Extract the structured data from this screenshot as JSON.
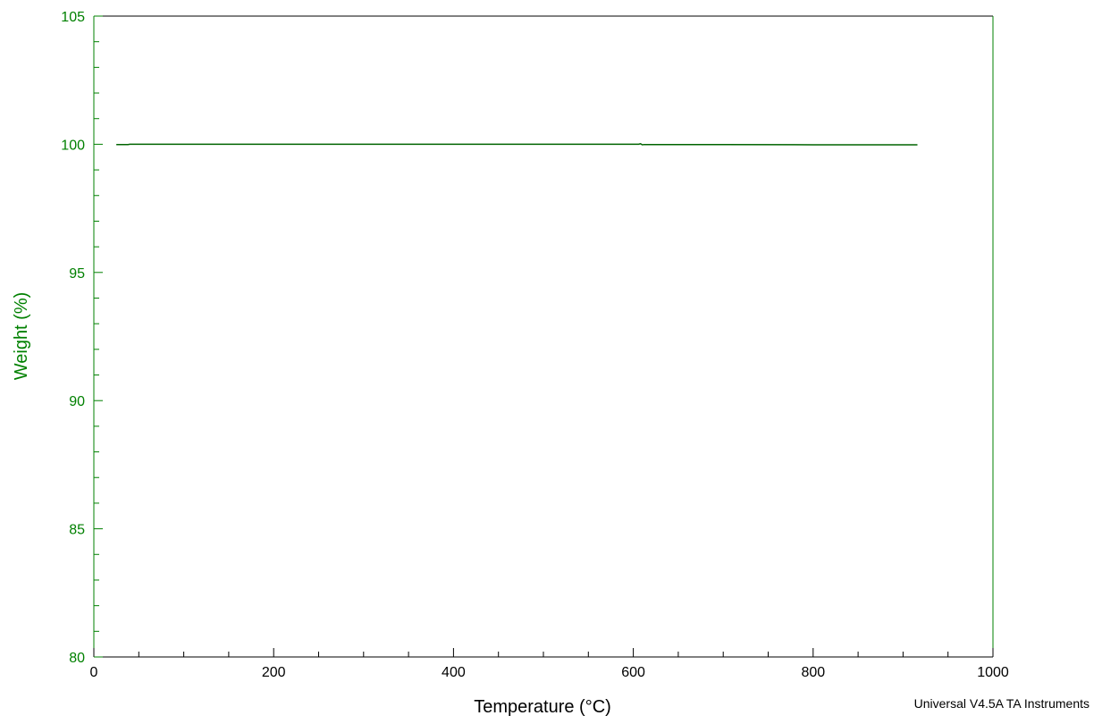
{
  "chart_data": {
    "type": "line",
    "xlabel": "Temperature (°C)",
    "ylabel": "Weight (%)",
    "xlim": [
      0,
      1000
    ],
    "ylim": [
      80,
      105
    ],
    "x_ticks": [
      0,
      200,
      400,
      600,
      800,
      1000
    ],
    "x_tick_labels": [
      "0",
      "200",
      "400",
      "600",
      "800",
      "1000"
    ],
    "x_minor_step": 50,
    "y_ticks": [
      80,
      85,
      90,
      95,
      100,
      105
    ],
    "y_tick_labels": [
      "80",
      "85",
      "90",
      "95",
      "100",
      "105"
    ],
    "y_minor_step": 1,
    "grid": false,
    "series": [
      {
        "x": [
          25,
          38,
          40,
          100,
          200,
          300,
          400,
          500,
          600,
          606,
          608,
          610,
          612,
          700,
          800,
          916
        ],
        "y": [
          99.99,
          99.99,
          100.0,
          100.0,
          100.0,
          100.0,
          100.0,
          100.0,
          100.0,
          100.0,
          100.02,
          99.98,
          99.99,
          99.99,
          99.98,
          99.98
        ]
      }
    ]
  },
  "footer": "Universal V4.5A TA Instruments",
  "colors": {
    "y_axis": "#008000",
    "x_axis": "#000000",
    "series": "#006400",
    "right_border": "#008000"
  }
}
